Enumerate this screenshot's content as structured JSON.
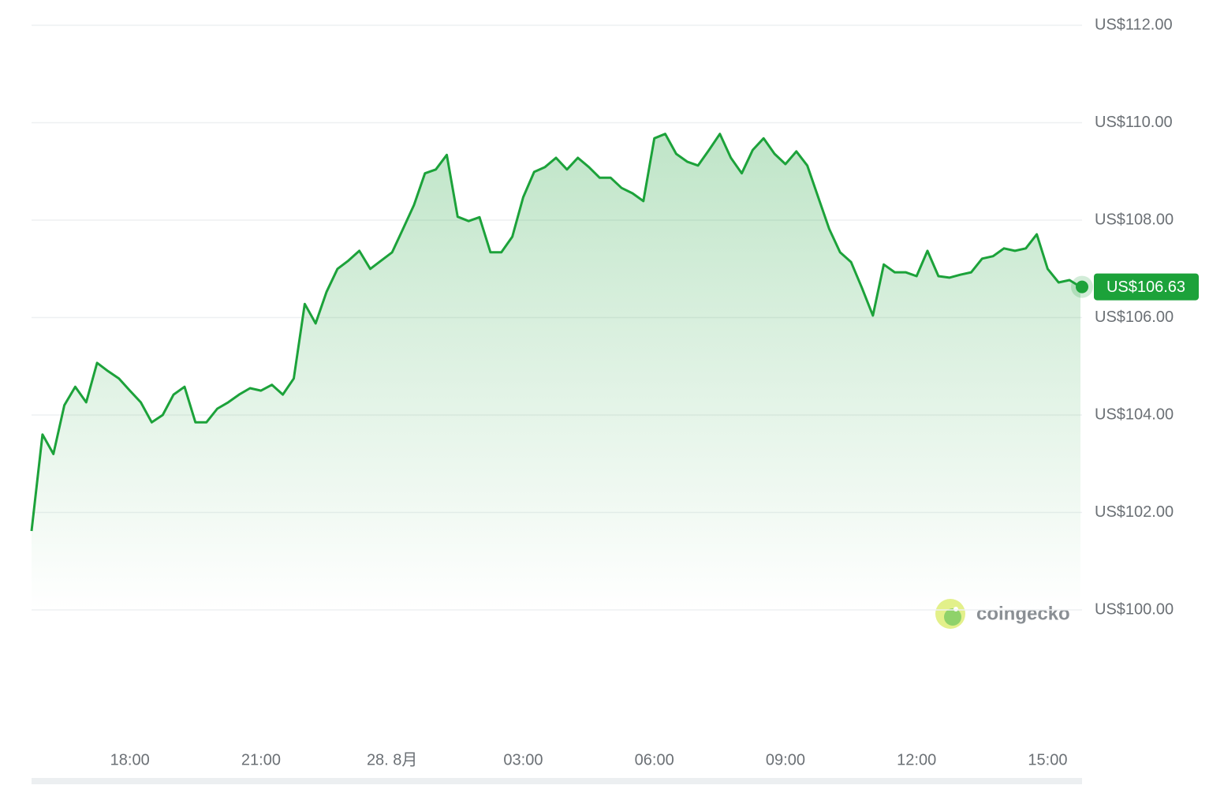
{
  "chart_data": {
    "type": "line",
    "categories": [
      null,
      null,
      null,
      null,
      null,
      null,
      null,
      null,
      null,
      "18:00",
      null,
      null,
      null,
      null,
      null,
      null,
      null,
      null,
      null,
      null,
      null,
      "21:00",
      null,
      null,
      null,
      null,
      null,
      null,
      null,
      null,
      null,
      null,
      null,
      "28. 8月",
      null,
      null,
      null,
      null,
      null,
      null,
      null,
      null,
      null,
      null,
      null,
      "03:00",
      null,
      null,
      null,
      null,
      null,
      null,
      null,
      null,
      null,
      null,
      null,
      "06:00",
      null,
      null,
      null,
      null,
      null,
      null,
      null,
      null,
      null,
      null,
      null,
      "09:00",
      null,
      null,
      null,
      null,
      null,
      null,
      null,
      null,
      null,
      null,
      null,
      "12:00",
      null,
      null,
      null,
      null,
      null,
      null,
      null,
      null,
      null,
      null,
      null,
      "15:00",
      null,
      null,
      null
    ],
    "series": [
      {
        "color": "#1ca23a",
        "values": [
          101.62,
          103.6,
          103.2,
          104.2,
          104.58,
          104.26,
          105.07,
          104.9,
          104.75,
          104.5,
          104.26,
          103.85,
          104.0,
          104.42,
          104.58,
          103.85,
          103.85,
          104.13,
          104.26,
          104.42,
          104.55,
          104.5,
          104.62,
          104.42,
          104.75,
          106.28,
          105.88,
          106.53,
          107.0,
          107.17,
          107.37,
          107.0,
          107.17,
          107.34,
          107.82,
          108.31,
          108.96,
          109.04,
          109.34,
          108.07,
          107.98,
          108.06,
          107.34,
          107.34,
          107.66,
          108.47,
          108.99,
          109.09,
          109.28,
          109.04,
          109.28,
          109.09,
          108.87,
          108.87,
          108.66,
          108.55,
          108.39,
          109.68,
          109.77,
          109.36,
          109.2,
          109.12,
          109.44,
          109.77,
          109.28,
          108.96,
          109.44,
          109.68,
          109.36,
          109.15,
          109.41,
          109.12,
          108.47,
          107.82,
          107.34,
          107.14,
          106.61,
          106.04,
          107.09,
          106.93,
          106.93,
          106.85,
          107.37,
          106.85,
          106.82,
          106.88,
          106.93,
          107.21,
          107.26,
          107.42,
          107.37,
          107.42,
          107.71,
          107.0,
          106.72,
          106.77,
          106.63
        ]
      }
    ],
    "ylim": [
      100,
      112
    ],
    "yticks": [
      {
        "value": 100,
        "label": "US$100.00"
      },
      {
        "value": 102,
        "label": "US$102.00"
      },
      {
        "value": 104,
        "label": "US$104.00"
      },
      {
        "value": 106,
        "label": "US$106.00"
      },
      {
        "value": 108,
        "label": "US$108.00"
      },
      {
        "value": 110,
        "label": "US$110.00"
      },
      {
        "value": 112,
        "label": "US$112.00"
      }
    ],
    "grid": true,
    "current_price": {
      "value": 106.63,
      "label": "US$106.63"
    },
    "watermark": "coingecko"
  }
}
